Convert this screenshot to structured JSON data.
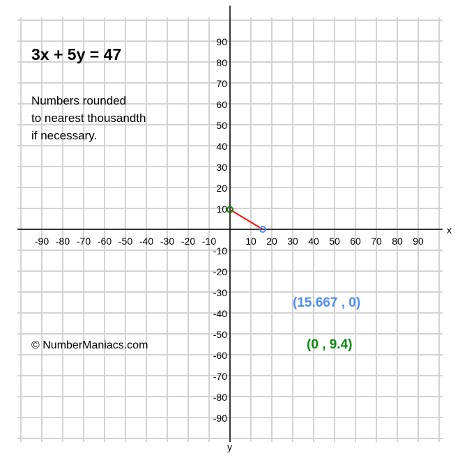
{
  "chart_data": {
    "type": "line",
    "title": "3x + 5y = 47",
    "subtitle_lines": [
      "Numbers rounded",
      "to nearest thousandth",
      "if necessary."
    ],
    "copyright": "© NumberManiacs.com",
    "xlabel": "x",
    "ylabel": "y",
    "xlim": [
      -100,
      100
    ],
    "ylim": [
      -100,
      100
    ],
    "grid": true,
    "x_ticks": [
      -90,
      -80,
      -70,
      -60,
      -50,
      -40,
      -30,
      -20,
      -10,
      10,
      20,
      30,
      40,
      50,
      60,
      70,
      80,
      90
    ],
    "y_ticks": [
      90,
      80,
      70,
      60,
      50,
      40,
      30,
      20,
      10,
      -10,
      -20,
      -30,
      -40,
      -50,
      -60,
      -70,
      -80,
      -90
    ],
    "series": [
      {
        "points": [
          [
            0,
            9.4
          ],
          [
            15.667,
            0
          ]
        ],
        "color": "#ff0000"
      }
    ],
    "points": [
      {
        "x": 15.667,
        "y": 0,
        "label": "(15.667 , 0)",
        "color": "#4d8ef7"
      },
      {
        "x": 0,
        "y": 9.4,
        "label": "(0 , 9.4)",
        "color": "#0a8a0a"
      }
    ],
    "colors": {
      "grid": "#d3d3d3",
      "axis": "#000000"
    }
  }
}
